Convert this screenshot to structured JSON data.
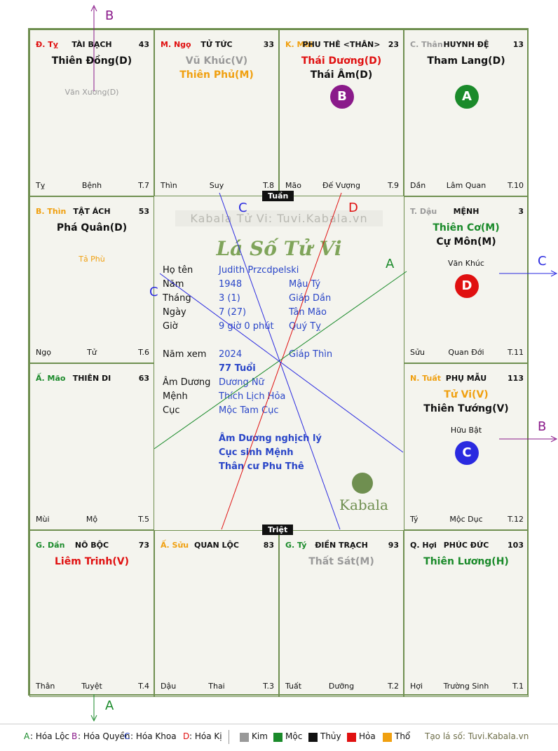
{
  "colors": {
    "kim": "#999999",
    "moc": "#1a8a2a",
    "thuy": "#111111",
    "hoa": "#e01010",
    "tho": "#f0a010",
    "blue": "#2a46c8",
    "purple": "#8a1a8a",
    "green": "#2a9a2a",
    "red": "#e01010",
    "gray": "#9a9a9a"
  },
  "cells": [
    {
      "id": "ty-top",
      "can": "Đ. Tỵ",
      "can_color": "#e01010",
      "palace": "TÀI BẠCH",
      "num": "43",
      "stars": [
        {
          "text": "Thiên Đồng(D)",
          "color": "#111111"
        }
      ],
      "minors": [
        {
          "text": "Văn Xương(D)",
          "color": "#9a9a9a"
        }
      ],
      "bl": "Tỵ",
      "bm": "Bệnh",
      "br": "T.7"
    },
    {
      "id": "ngo-top",
      "can": "M. Ngọ",
      "can_color": "#e01010",
      "palace": "TỬ TỨC",
      "num": "33",
      "stars": [
        {
          "text": "Vũ Khúc(V)",
          "color": "#9a9a9a"
        },
        {
          "text": "Thiên Phủ(M)",
          "color": "#f0a010"
        }
      ],
      "minors": [],
      "bl": "Thìn",
      "bm": "Suy",
      "br": "T.8"
    },
    {
      "id": "mui-top",
      "can": "K. Mùi",
      "can_color": "#f0a010",
      "palace": "PHU THÊ <THÂN>",
      "num": "23",
      "stars": [
        {
          "text": "Thái Dương(D)",
          "color": "#e01010"
        },
        {
          "text": "Thái Âm(D)",
          "color": "#111111"
        }
      ],
      "minors": [],
      "badge": {
        "text": "B",
        "color": "#8a1a8a"
      },
      "bl": "Mão",
      "bm": "Đế Vượng",
      "br": "T.9"
    },
    {
      "id": "than-top",
      "can": "C. Thân",
      "can_color": "#9a9a9a",
      "palace": "HUYNH ĐỆ",
      "num": "13",
      "stars": [
        {
          "text": "Tham Lang(D)",
          "color": "#111111"
        }
      ],
      "minors": [],
      "badge": {
        "text": "A",
        "color": "#1a8a2a"
      },
      "bl": "Dần",
      "bm": "Lâm Quan",
      "br": "T.10"
    },
    {
      "id": "thin-left",
      "can": "B. Thìn",
      "can_color": "#f0a010",
      "palace": "TẬT ÁCH",
      "num": "53",
      "stars": [
        {
          "text": "Phá Quân(D)",
          "color": "#111111"
        }
      ],
      "minors": [
        {
          "text": "Tả Phù",
          "color": "#f0a010"
        }
      ],
      "bl": "Ngọ",
      "bm": "Tử",
      "br": "T.6"
    },
    {
      "id": "dau-right",
      "can": "T. Dậu",
      "can_color": "#9a9a9a",
      "palace": "MỆNH",
      "num": "3",
      "stars": [
        {
          "text": "Thiên Cơ(M)",
          "color": "#1a8a2a"
        },
        {
          "text": "Cự Môn(M)",
          "color": "#111111"
        }
      ],
      "minors": [
        {
          "text": "Văn Khúc",
          "color": "#111111"
        }
      ],
      "badge": {
        "text": "D",
        "color": "#e01010"
      },
      "bl": "Sửu",
      "bm": "Quan Đới",
      "br": "T.11"
    },
    {
      "id": "mao-left",
      "can": "Ấ. Mão",
      "can_color": "#1a8a2a",
      "palace": "THIÊN DI",
      "num": "63",
      "stars": [],
      "minors": [],
      "bl": "Mùi",
      "bm": "Mộ",
      "br": "T.5"
    },
    {
      "id": "tuat-right",
      "can": "N. Tuất",
      "can_color": "#f0a010",
      "palace": "PHỤ MẪU",
      "num": "113",
      "stars": [
        {
          "text": "Tử Vi(V)",
          "color": "#f0a010"
        },
        {
          "text": "Thiên Tướng(V)",
          "color": "#111111"
        }
      ],
      "minors": [
        {
          "text": "Hữu Bật",
          "color": "#111111"
        }
      ],
      "badge": {
        "text": "C",
        "color": "#2a2ae0"
      },
      "bl": "Tý",
      "bm": "Mộc Dục",
      "br": "T.12"
    },
    {
      "id": "dan-bot",
      "can": "G. Dần",
      "can_color": "#1a8a2a",
      "palace": "NÔ BỘC",
      "num": "73",
      "stars": [
        {
          "text": "Liêm Trinh(V)",
          "color": "#e01010"
        }
      ],
      "minors": [],
      "bl": "Thân",
      "bm": "Tuyệt",
      "br": "T.4"
    },
    {
      "id": "suu-bot",
      "can": "Ấ. Sửu",
      "can_color": "#f0a010",
      "palace": "QUAN LỘC",
      "num": "83",
      "stars": [],
      "minors": [],
      "bl": "Dậu",
      "bm": "Thai",
      "br": "T.3"
    },
    {
      "id": "ty2-bot",
      "can": "G. Tý",
      "can_color": "#1a8a2a",
      "palace": "ĐIỀN TRẠCH",
      "num": "93",
      "stars": [
        {
          "text": "Thất Sát(M)",
          "color": "#9a9a9a"
        }
      ],
      "minors": [],
      "bl": "Tuất",
      "bm": "Dưỡng",
      "br": "T.2"
    },
    {
      "id": "hoi-bot",
      "can": "Q. Hợi",
      "can_color": "#111111",
      "palace": "PHÚC ĐỨC",
      "num": "103",
      "stars": [
        {
          "text": "Thiên Lương(H)",
          "color": "#1a8a2a"
        }
      ],
      "minors": [],
      "bl": "Hợi",
      "bm": "Trường Sinh",
      "br": "T.1"
    }
  ],
  "center": {
    "watermark": "Kabala Tử Vi: Tuvi.Kabala.vn",
    "logo_text": "Lá Số Tử Vi",
    "rows": [
      {
        "label": "Họ tên",
        "v1": "Judith Przcdpelski",
        "v2": ""
      },
      {
        "label": "Năm",
        "v1": "1948",
        "v2": "Mậu Tý"
      },
      {
        "label": "Tháng",
        "v1": "3  (1)",
        "v2": "Giáp Dần"
      },
      {
        "label": "Ngày",
        "v1": "7  (27)",
        "v2": "Tân Mão"
      },
      {
        "label": "Giờ",
        "v1": "9 giờ 0 phút",
        "v2": "Quý Tỵ"
      }
    ],
    "nam_xem": {
      "label": "Năm xem",
      "v1": "2024",
      "v2": "Giáp Thìn"
    },
    "tuoi": "77 Tuổi",
    "rows2": [
      {
        "label": "Âm Dương",
        "v1": "Dương Nữ"
      },
      {
        "label": "Mệnh",
        "v1": "Thích Lịch Hỏa"
      },
      {
        "label": "Cục",
        "v1": "Mộc Tam Cục"
      }
    ],
    "notes": [
      "Âm Dương nghịch lý",
      "Cục sinh Mệnh",
      "Thân cư Phu Thê"
    ],
    "brand": "Kabala"
  },
  "tags": {
    "tuan": "Tuần",
    "triet": "Triệt"
  },
  "arrow_labels": {
    "top": "B",
    "right_a": "C",
    "right_b": "B",
    "bottom": "A",
    "line_c1": "C",
    "line_d": "D",
    "line_a": "A",
    "line_c2": "C"
  },
  "legend": {
    "items": [
      {
        "key": "A",
        "text": ": Hóa Lộc",
        "color": "#1a8a2a"
      },
      {
        "key": "B",
        "text": ": Hóa Quyền",
        "color": "#8a1a8a"
      },
      {
        "key": "C",
        "text": ": Hóa Khoa",
        "color": "#2a46c8"
      },
      {
        "key": "D",
        "text": ": Hóa Kị",
        "color": "#e01010"
      }
    ],
    "elements": [
      {
        "text": "Kim",
        "color": "#999999"
      },
      {
        "text": "Mộc",
        "color": "#1a8a2a"
      },
      {
        "text": "Thủy",
        "color": "#111111"
      },
      {
        "text": "Hỏa",
        "color": "#e01010"
      },
      {
        "text": "Thổ",
        "color": "#f0a010"
      }
    ],
    "site": "Tạo lá số: Tuvi.Kabala.vn"
  }
}
